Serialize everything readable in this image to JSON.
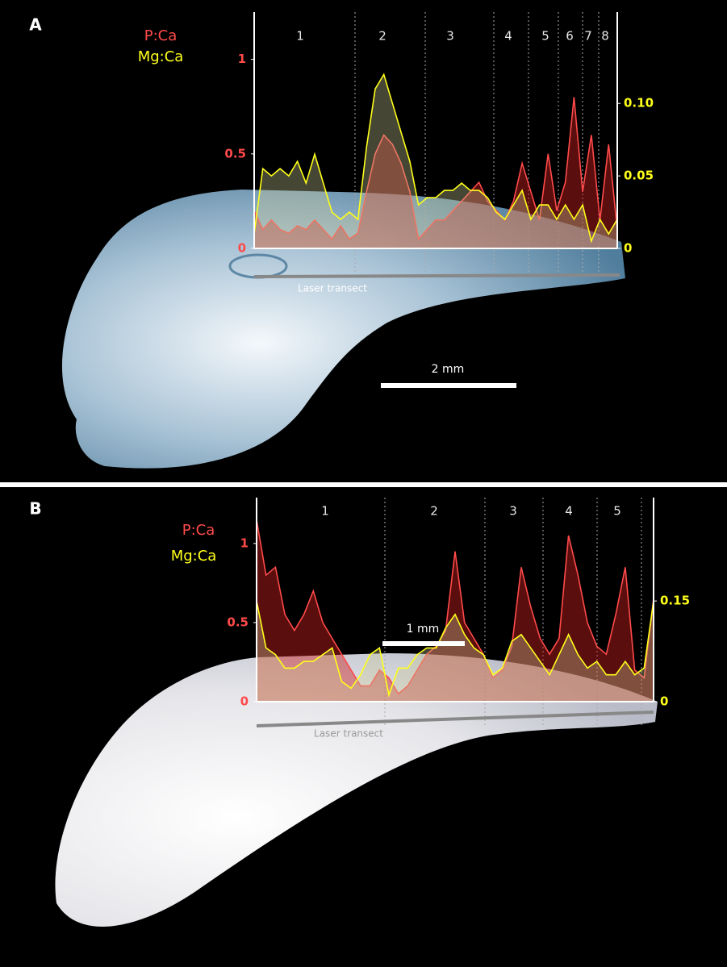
{
  "chart_data": [
    {
      "type": "line",
      "label": "A",
      "series": [
        {
          "name": "P:Ca",
          "color": "#ff4a4a",
          "values": [
            0.2,
            0.1,
            0.15,
            0.1,
            0.08,
            0.12,
            0.1,
            0.15,
            0.1,
            0.05,
            0.12,
            0.05,
            0.08,
            0.3,
            0.5,
            0.6,
            0.55,
            0.45,
            0.3,
            0.05,
            0.1,
            0.15,
            0.15,
            0.2,
            0.25,
            0.3,
            0.35,
            0.25,
            0.2,
            0.15,
            0.25,
            0.45,
            0.3,
            0.15,
            0.5,
            0.2,
            0.35,
            0.8,
            0.3,
            0.6,
            0.15,
            0.55,
            0.1
          ]
        },
        {
          "name": "Mg:Ca",
          "color": "#ffff1a",
          "axis": "y2",
          "values": [
            0.01,
            0.055,
            0.05,
            0.055,
            0.05,
            0.06,
            0.045,
            0.065,
            0.045,
            0.025,
            0.02,
            0.025,
            0.02,
            0.07,
            0.11,
            0.12,
            0.1,
            0.08,
            0.06,
            0.03,
            0.035,
            0.035,
            0.04,
            0.04,
            0.045,
            0.04,
            0.04,
            0.035,
            0.025,
            0.02,
            0.03,
            0.04,
            0.02,
            0.03,
            0.03,
            0.02,
            0.03,
            0.02,
            0.03,
            0.005,
            0.02,
            0.01,
            0.02
          ]
        }
      ],
      "ylim": [
        0,
        1.25
      ],
      "yticks": [
        0,
        0.5,
        1
      ],
      "y2lim": [
        0,
        0.163
      ],
      "y2ticks": [
        0,
        0.05,
        {
          "value": 0.1,
          "label": "0.10"
        }
      ],
      "zones": [
        "1",
        "2",
        "3",
        "4",
        "5",
        "6",
        "7",
        "8"
      ],
      "transect_label": "Laser transect",
      "scale_bar": "2 mm"
    },
    {
      "type": "line",
      "label": "B",
      "series": [
        {
          "name": "P:Ca",
          "color": "#ff4a4a",
          "values": [
            1.15,
            0.8,
            0.85,
            0.55,
            0.45,
            0.55,
            0.7,
            0.5,
            0.4,
            0.3,
            0.2,
            0.1,
            0.1,
            0.2,
            0.15,
            0.05,
            0.1,
            0.2,
            0.3,
            0.35,
            0.45,
            0.95,
            0.5,
            0.4,
            0.3,
            0.15,
            0.2,
            0.35,
            0.85,
            0.6,
            0.4,
            0.3,
            0.4,
            1.05,
            0.8,
            0.5,
            0.35,
            0.3,
            0.55,
            0.85,
            0.2,
            0.15,
            0.65
          ]
        },
        {
          "name": "Mg:Ca",
          "color": "#ffff1a",
          "axis": "y2",
          "values": [
            0.15,
            0.08,
            0.07,
            0.05,
            0.05,
            0.06,
            0.06,
            0.07,
            0.08,
            0.03,
            0.02,
            0.04,
            0.07,
            0.08,
            0.01,
            0.05,
            0.05,
            0.07,
            0.08,
            0.08,
            0.11,
            0.13,
            0.1,
            0.08,
            0.07,
            0.04,
            0.05,
            0.09,
            0.1,
            0.08,
            0.06,
            0.04,
            0.07,
            0.1,
            0.07,
            0.05,
            0.06,
            0.04,
            0.04,
            0.06,
            0.04,
            0.05,
            0.15
          ]
        }
      ],
      "ylim": [
        0,
        1.29
      ],
      "yticks": [
        0,
        0.5,
        1
      ],
      "y2lim": [
        0,
        0.304
      ],
      "y2ticks": [
        0,
        0.15
      ],
      "zones": [
        "1",
        "2",
        "3",
        "4",
        "5"
      ],
      "transect_label": "Laser transect",
      "scale_bar": "1 mm"
    }
  ]
}
